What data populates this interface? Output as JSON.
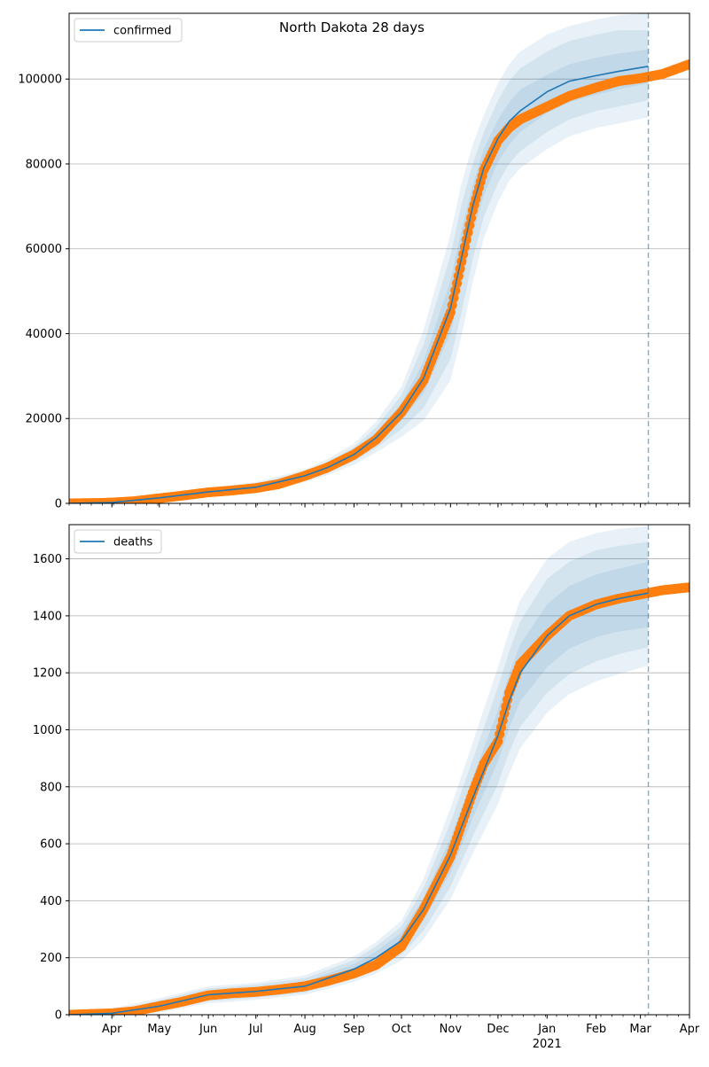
{
  "figure": {
    "title": "North Dakota 28 days"
  },
  "colors": {
    "model": "#1f77b4",
    "observed": "#ff7f0e",
    "band": "#1f77b4",
    "grid": "#b0b0b0",
    "vline": "#1f77b4"
  },
  "x_axis": {
    "month_labels": [
      "Apr",
      "May",
      "Jun",
      "Jul",
      "Aug",
      "Sep",
      "Oct",
      "Nov",
      "Dec",
      "Jan",
      "Feb",
      "Mar",
      "Apr"
    ],
    "year_label": "2021",
    "date_range": [
      "2020-03-05",
      "2021-04-01"
    ],
    "month_ticks": [
      "2020-04-01",
      "2020-05-01",
      "2020-06-01",
      "2020-07-01",
      "2020-08-01",
      "2020-09-01",
      "2020-10-01",
      "2020-11-01",
      "2020-12-01",
      "2021-01-01",
      "2021-02-01",
      "2021-03-01",
      "2021-04-01"
    ],
    "forecast_date": "2021-03-06"
  },
  "chart_data": [
    {
      "type": "line",
      "panel": "confirmed",
      "legend": "confirmed",
      "legend_position": "top-left",
      "ylim": [
        0,
        115500
      ],
      "yticks": [
        0,
        20000,
        40000,
        60000,
        80000,
        100000
      ],
      "ytick_labels": [
        "0",
        "20000",
        "40000",
        "60000",
        "80000",
        "100000"
      ],
      "grid": "horizontal",
      "model": {
        "dates": [
          "2020-03-05",
          "2020-04-01",
          "2020-05-01",
          "2020-06-01",
          "2020-07-01",
          "2020-08-01",
          "2020-08-15",
          "2020-09-01",
          "2020-09-15",
          "2020-10-01",
          "2020-10-15",
          "2020-11-01",
          "2020-11-08",
          "2020-11-15",
          "2020-11-22",
          "2020-12-01",
          "2020-12-08",
          "2020-12-15",
          "2021-01-01",
          "2021-01-15",
          "2021-02-01",
          "2021-02-15",
          "2021-03-06"
        ],
        "values": [
          0,
          200,
          1300,
          2700,
          3800,
          6500,
          8400,
          11500,
          15500,
          21500,
          29500,
          46000,
          58000,
          70000,
          79000,
          86000,
          90000,
          92500,
          97000,
          99500,
          100800,
          101800,
          103000
        ],
        "band_inner_upper": [
          0,
          250,
          1500,
          3000,
          4200,
          7000,
          9000,
          12300,
          16700,
          23500,
          33500,
          52500,
          64500,
          75000,
          83500,
          90500,
          94500,
          97500,
          101000,
          103500,
          105000,
          106000,
          107000
        ],
        "band_inner_lower": [
          0,
          150,
          1100,
          2400,
          3400,
          6000,
          7800,
          10700,
          14300,
          19500,
          26000,
          40000,
          51500,
          63500,
          72500,
          80500,
          84500,
          87500,
          92000,
          94500,
          96300,
          97500,
          99000
        ],
        "band_outer_upper": [
          0,
          300,
          1700,
          3300,
          4600,
          7500,
          9700,
          13200,
          18000,
          25500,
          37500,
          58500,
          70500,
          80000,
          87500,
          95000,
          99500,
          102500,
          106500,
          109000,
          110500,
          111500,
          111500
        ],
        "band_outer_lower": [
          0,
          100,
          900,
          2100,
          3000,
          5500,
          7200,
          9900,
          13100,
          17500,
          22500,
          34000,
          45000,
          57500,
          67500,
          75500,
          80000,
          83000,
          87500,
          90500,
          92500,
          93500,
          95000
        ],
        "band_widest_upper": [
          0,
          350,
          1900,
          3600,
          5000,
          8000,
          10400,
          14100,
          19300,
          27500,
          41000,
          63500,
          75500,
          84500,
          91500,
          99000,
          103500,
          106500,
          110500,
          112500,
          114000,
          115000,
          115500
        ],
        "band_widest_lower": [
          0,
          50,
          700,
          1800,
          2600,
          5000,
          6600,
          9100,
          12000,
          15700,
          19500,
          29000,
          39500,
          52000,
          62500,
          71000,
          76000,
          79000,
          83500,
          86500,
          88500,
          89500,
          91000
        ]
      },
      "observed": {
        "dates": [
          "2020-03-05",
          "2020-03-25",
          "2020-04-01",
          "2020-04-15",
          "2020-05-01",
          "2020-05-15",
          "2020-06-01",
          "2020-06-15",
          "2020-07-01",
          "2020-07-15",
          "2020-08-01",
          "2020-08-15",
          "2020-09-01",
          "2020-09-15",
          "2020-10-01",
          "2020-10-15",
          "2020-11-01",
          "2020-11-08",
          "2020-11-15",
          "2020-11-22",
          "2020-12-01",
          "2020-12-08",
          "2020-12-15",
          "2021-01-01",
          "2021-01-15",
          "2021-02-01",
          "2021-02-15",
          "2021-03-01",
          "2021-03-15",
          "2021-04-01"
        ],
        "values": [
          0,
          100,
          200,
          500,
          1200,
          1800,
          2600,
          3000,
          3600,
          4500,
          6500,
          8400,
          11500,
          15000,
          21500,
          29000,
          45000,
          57000,
          69000,
          78500,
          85500,
          88500,
          90500,
          93500,
          96000,
          98000,
          99500,
          100200,
          101200,
          103500
        ]
      }
    },
    {
      "type": "line",
      "panel": "deaths",
      "legend": "deaths",
      "legend_position": "top-left",
      "ylim": [
        0,
        1720
      ],
      "yticks": [
        0,
        200,
        400,
        600,
        800,
        1000,
        1200,
        1400,
        1600
      ],
      "ytick_labels": [
        "0",
        "200",
        "400",
        "600",
        "800",
        "1000",
        "1200",
        "1400",
        "1600"
      ],
      "grid": "horizontal",
      "model": {
        "dates": [
          "2020-03-05",
          "2020-04-01",
          "2020-05-01",
          "2020-06-01",
          "2020-07-01",
          "2020-08-01",
          "2020-09-01",
          "2020-09-15",
          "2020-10-01",
          "2020-10-15",
          "2020-11-01",
          "2020-11-15",
          "2020-12-01",
          "2020-12-08",
          "2020-12-15",
          "2021-01-01",
          "2021-01-15",
          "2021-02-01",
          "2021-02-15",
          "2021-03-06"
        ],
        "values": [
          0,
          5,
          30,
          70,
          82,
          100,
          160,
          200,
          260,
          370,
          560,
          760,
          980,
          1100,
          1200,
          1330,
          1400,
          1440,
          1460,
          1480
        ],
        "band_inner_upper": [
          0,
          8,
          40,
          82,
          95,
          115,
          178,
          222,
          288,
          410,
          620,
          830,
          1070,
          1195,
          1300,
          1440,
          1505,
          1545,
          1565,
          1590
        ],
        "band_inner_lower": [
          0,
          3,
          22,
          58,
          70,
          88,
          142,
          178,
          232,
          330,
          500,
          690,
          890,
          1005,
          1100,
          1220,
          1285,
          1325,
          1345,
          1360
        ],
        "band_outer_upper": [
          0,
          12,
          50,
          92,
          105,
          128,
          192,
          240,
          310,
          445,
          675,
          895,
          1150,
          1275,
          1380,
          1530,
          1590,
          1630,
          1645,
          1660
        ],
        "band_outer_lower": [
          0,
          0,
          14,
          48,
          60,
          78,
          128,
          160,
          210,
          295,
          450,
          625,
          810,
          920,
          1010,
          1130,
          1195,
          1240,
          1265,
          1290
        ],
        "band_widest_upper": [
          0,
          22,
          58,
          100,
          112,
          138,
          205,
          255,
          330,
          478,
          725,
          955,
          1220,
          1345,
          1455,
          1600,
          1660,
          1690,
          1705,
          1715
        ],
        "band_widest_lower": [
          0,
          0,
          8,
          40,
          52,
          70,
          115,
          145,
          190,
          265,
          405,
          565,
          740,
          845,
          935,
          1060,
          1125,
          1170,
          1195,
          1225
        ]
      },
      "observed": {
        "dates": [
          "2020-03-05",
          "2020-04-01",
          "2020-04-15",
          "2020-05-01",
          "2020-05-15",
          "2020-06-01",
          "2020-06-15",
          "2020-07-01",
          "2020-07-15",
          "2020-08-01",
          "2020-08-15",
          "2020-09-01",
          "2020-09-15",
          "2020-10-01",
          "2020-10-15",
          "2020-11-01",
          "2020-11-15",
          "2020-11-22",
          "2020-12-01",
          "2020-12-08",
          "2020-12-15",
          "2021-01-01",
          "2021-01-15",
          "2021-02-01",
          "2021-02-15",
          "2021-03-01",
          "2021-03-15",
          "2021-04-01"
        ],
        "values": [
          0,
          5,
          12,
          30,
          45,
          68,
          75,
          80,
          88,
          100,
          118,
          145,
          175,
          240,
          370,
          555,
          780,
          880,
          960,
          1130,
          1230,
          1330,
          1400,
          1440,
          1460,
          1475,
          1490,
          1500
        ]
      }
    }
  ]
}
